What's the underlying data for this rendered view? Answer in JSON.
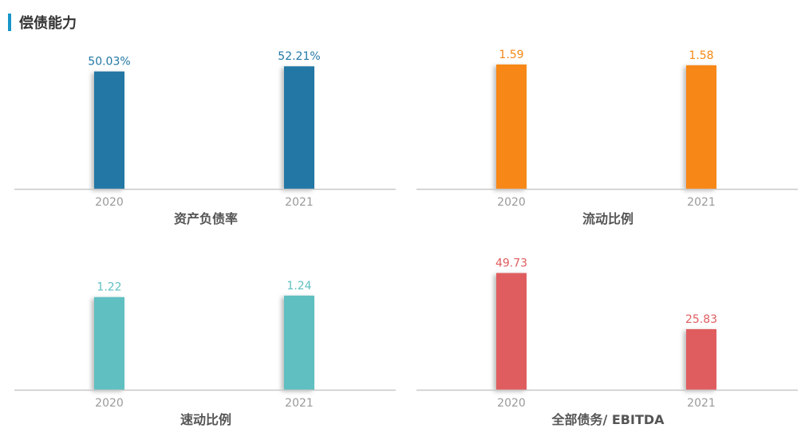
{
  "header": {
    "title": "偿债能力",
    "accent": "#1a95c9"
  },
  "chart_data": [
    {
      "type": "bar",
      "title": "资产负债率",
      "categories": [
        "2020",
        "2021"
      ],
      "values": [
        50.03,
        52.21
      ],
      "value_labels": [
        "50.03%",
        "52.21%"
      ],
      "color": "#2277a4",
      "ylim": [
        0,
        55
      ]
    },
    {
      "type": "bar",
      "title": "流动比例",
      "categories": [
        "2020",
        "2021"
      ],
      "values": [
        1.59,
        1.58
      ],
      "value_labels": [
        "1.59",
        "1.58"
      ],
      "color": "#f78714",
      "ylim": [
        0,
        1.65
      ]
    },
    {
      "type": "bar",
      "title": "速动比例",
      "categories": [
        "2020",
        "2021"
      ],
      "values": [
        1.22,
        1.24
      ],
      "value_labels": [
        "1.22",
        "1.24"
      ],
      "color": "#5fbfc1",
      "ylim": [
        0,
        1.7
      ]
    },
    {
      "type": "bar",
      "title": "全部债务/ EBITDA",
      "categories": [
        "2020",
        "2021"
      ],
      "values": [
        49.73,
        25.83
      ],
      "value_labels": [
        "49.73",
        "25.83"
      ],
      "color": "#e05d5f",
      "ylim": [
        0,
        55
      ]
    }
  ]
}
